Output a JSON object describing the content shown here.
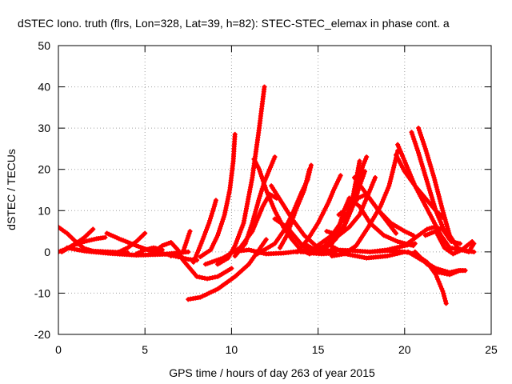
{
  "chart_data": {
    "type": "scatter",
    "title": "dSTEC Iono. truth (flrs, Lon=328, Lat=39, h=82): STEC-STEC_elemax in phase cont. a",
    "xlabel": "GPS time / hours of day 263 of year 2015",
    "ylabel": "dSTEC  / TECUs",
    "xlim": [
      0,
      25
    ],
    "ylim": [
      -20,
      50
    ],
    "x_ticks": [
      0,
      5,
      10,
      15,
      20,
      25
    ],
    "y_ticks": [
      -20,
      -10,
      0,
      10,
      20,
      30,
      40,
      50
    ],
    "grid": true,
    "marker": "plus",
    "color": "#ff0000",
    "series": [
      {
        "points": [
          [
            0,
            6
          ],
          [
            0.5,
            4.5
          ],
          [
            1.0,
            2.5
          ],
          [
            1.5,
            0.8
          ],
          [
            2.0,
            0.2
          ],
          [
            3.0,
            0
          ],
          [
            4.0,
            -0.2
          ]
        ]
      },
      {
        "points": [
          [
            0,
            0
          ],
          [
            0.5,
            0.8
          ],
          [
            1.0,
            2
          ],
          [
            1.5,
            3.5
          ],
          [
            2.0,
            5.5
          ]
        ]
      },
      {
        "points": [
          [
            0.2,
            0
          ],
          [
            0.8,
            1.5
          ],
          [
            1.5,
            2.5
          ],
          [
            2.2,
            3.2
          ],
          [
            2.7,
            3.5
          ]
        ]
      },
      {
        "points": [
          [
            0.5,
            1
          ],
          [
            1.5,
            0.2
          ],
          [
            3.0,
            -0.4
          ],
          [
            4.5,
            -0.8
          ],
          [
            6.0,
            -0.6
          ],
          [
            7.5,
            0
          ]
        ]
      },
      {
        "points": [
          [
            2.8,
            4.5
          ],
          [
            3.5,
            3.2
          ],
          [
            4.5,
            1.5
          ],
          [
            5.5,
            0
          ],
          [
            6.5,
            -0.8
          ],
          [
            7.5,
            -1.8
          ],
          [
            8.0,
            -2
          ]
        ]
      },
      {
        "points": [
          [
            3.5,
            0
          ],
          [
            4.0,
            1
          ],
          [
            4.5,
            2.5
          ],
          [
            5.0,
            4.5
          ]
        ]
      },
      {
        "points": [
          [
            4.5,
            -0.5
          ],
          [
            5.0,
            0.5
          ],
          [
            5.5,
            1
          ],
          [
            6.0,
            0.5
          ]
        ]
      },
      {
        "points": [
          [
            5.5,
            0
          ],
          [
            6.0,
            1.5
          ],
          [
            6.5,
            2.3
          ],
          [
            6.9,
            0.5
          ],
          [
            7.2,
            -2
          ],
          [
            7.6,
            -4
          ],
          [
            8.0,
            -6
          ],
          [
            8.6,
            -6.5
          ],
          [
            9.2,
            -6
          ],
          [
            10.0,
            -4
          ]
        ]
      },
      {
        "points": [
          [
            6.5,
            -1
          ],
          [
            7.2,
            0
          ],
          [
            7.6,
            5
          ]
        ]
      },
      {
        "points": [
          [
            7.8,
            -2.5
          ],
          [
            8.2,
            1.5
          ],
          [
            8.7,
            7
          ],
          [
            9.0,
            11
          ],
          [
            9.1,
            12.5
          ]
        ]
      },
      {
        "points": [
          [
            8.2,
            -1.2
          ],
          [
            8.8,
            0.5
          ],
          [
            9.2,
            4
          ],
          [
            9.6,
            9
          ],
          [
            9.9,
            15
          ],
          [
            10.1,
            22
          ],
          [
            10.2,
            28.5
          ]
        ]
      },
      {
        "points": [
          [
            7.5,
            -11.5
          ],
          [
            8.2,
            -11
          ],
          [
            9.2,
            -9
          ],
          [
            10.2,
            -6
          ],
          [
            11.0,
            -3
          ],
          [
            11.5,
            0
          ],
          [
            12.0,
            3
          ]
        ]
      },
      {
        "points": [
          [
            8.5,
            -3
          ],
          [
            9.5,
            -1.5
          ],
          [
            10.5,
            1
          ],
          [
            11.2,
            5
          ],
          [
            11.8,
            11
          ],
          [
            12.2,
            14
          ],
          [
            12.6,
            13
          ]
        ]
      },
      {
        "points": [
          [
            9.2,
            -3
          ],
          [
            9.8,
            -1.5
          ],
          [
            10.2,
            1.5
          ],
          [
            10.7,
            7
          ],
          [
            11.2,
            18
          ],
          [
            11.6,
            30
          ],
          [
            11.9,
            40
          ]
        ]
      },
      {
        "points": [
          [
            10.2,
            -1
          ],
          [
            10.8,
            2
          ],
          [
            11.2,
            7
          ],
          [
            11.6,
            13
          ],
          [
            11.9,
            17
          ],
          [
            12.2,
            20
          ],
          [
            12.5,
            23
          ]
        ]
      },
      {
        "points": [
          [
            11.3,
            22.5
          ],
          [
            11.6,
            20
          ],
          [
            12.0,
            15
          ],
          [
            12.5,
            10
          ],
          [
            13.0,
            6
          ],
          [
            13.5,
            3
          ],
          [
            14.0,
            0.5
          ],
          [
            14.5,
            -0.5
          ],
          [
            15.0,
            0.3
          ]
        ]
      },
      {
        "points": [
          [
            12.3,
            16
          ],
          [
            12.9,
            12
          ],
          [
            13.5,
            8
          ],
          [
            14.2,
            4
          ],
          [
            15.0,
            1
          ],
          [
            15.8,
            0
          ]
        ]
      },
      {
        "points": [
          [
            12.8,
            1
          ],
          [
            13.2,
            4
          ],
          [
            13.7,
            10
          ],
          [
            14.2,
            15
          ],
          [
            14.5,
            20
          ]
        ]
      },
      {
        "points": [
          [
            10.0,
            0
          ],
          [
            11.0,
            0.5
          ],
          [
            12.0,
            -0.5
          ],
          [
            13.0,
            -0.3
          ],
          [
            14.0,
            0.2
          ]
        ]
      },
      {
        "points": [
          [
            11.5,
            -0.5
          ],
          [
            12.5,
            2
          ],
          [
            13.0,
            5
          ],
          [
            13.5,
            9
          ],
          [
            14.0,
            14
          ],
          [
            14.4,
            17.5
          ],
          [
            14.6,
            21
          ]
        ]
      },
      {
        "points": [
          [
            12.5,
            8
          ],
          [
            13.2,
            6
          ],
          [
            14.0,
            2
          ],
          [
            14.6,
            -0.3
          ],
          [
            15.2,
            -0.5
          ],
          [
            16.0,
            -0.3
          ]
        ]
      },
      {
        "points": [
          [
            13.8,
            0
          ],
          [
            14.4,
            3
          ],
          [
            15.0,
            7
          ],
          [
            15.6,
            12
          ],
          [
            15.9,
            15
          ],
          [
            16.3,
            18.5
          ]
        ]
      },
      {
        "points": [
          [
            14.2,
            2
          ],
          [
            14.9,
            0.3
          ],
          [
            15.6,
            2
          ],
          [
            16.2,
            6
          ],
          [
            16.5,
            10
          ],
          [
            16.8,
            13
          ]
        ]
      },
      {
        "points": [
          [
            15.0,
            0
          ],
          [
            15.8,
            2
          ],
          [
            16.6,
            7
          ],
          [
            17.1,
            12
          ],
          [
            17.4,
            16
          ],
          [
            17.7,
            19.5
          ]
        ]
      },
      {
        "points": [
          [
            15.5,
            2
          ],
          [
            16.0,
            3
          ],
          [
            16.5,
            6
          ],
          [
            17.0,
            13
          ],
          [
            17.4,
            22
          ]
        ]
      },
      {
        "points": [
          [
            16.2,
            9
          ],
          [
            16.5,
            10
          ],
          [
            16.9,
            12
          ],
          [
            17.3,
            17
          ],
          [
            17.6,
            21
          ],
          [
            17.8,
            23
          ]
        ]
      },
      {
        "points": [
          [
            14.8,
            1
          ],
          [
            15.8,
            4
          ],
          [
            16.8,
            10
          ],
          [
            17.3,
            13
          ],
          [
            17.8,
            14
          ],
          [
            18.5,
            10
          ],
          [
            19.5,
            4.5
          ]
        ]
      },
      {
        "points": [
          [
            15.5,
            5
          ],
          [
            16.2,
            4
          ],
          [
            16.8,
            6
          ],
          [
            17.4,
            9
          ],
          [
            17.9,
            14
          ],
          [
            18.3,
            18
          ]
        ]
      },
      {
        "points": [
          [
            15.8,
            -1
          ],
          [
            16.5,
            -0.5
          ],
          [
            17.2,
            1.5
          ],
          [
            17.9,
            6
          ],
          [
            18.6,
            11
          ],
          [
            19.1,
            16
          ],
          [
            19.4,
            21
          ],
          [
            19.6,
            24.5
          ]
        ]
      },
      {
        "points": [
          [
            15.5,
            2
          ],
          [
            16.6,
            -0.5
          ],
          [
            17.8,
            -1.5
          ],
          [
            19.0,
            -1
          ],
          [
            20.0,
            0
          ]
        ]
      },
      {
        "points": [
          [
            14.0,
            0
          ],
          [
            15.0,
            0
          ],
          [
            16.0,
            0.5
          ],
          [
            17.0,
            0.3
          ],
          [
            18.0,
            0
          ],
          [
            19.0,
            0.5
          ],
          [
            20.0,
            1.5
          ],
          [
            20.6,
            2
          ]
        ]
      },
      {
        "points": [
          [
            16.8,
            13
          ],
          [
            17.4,
            11
          ],
          [
            18.0,
            7
          ],
          [
            18.8,
            4
          ],
          [
            19.6,
            2.5
          ],
          [
            20.5,
            1.5
          ]
        ]
      },
      {
        "points": [
          [
            17.1,
            18
          ],
          [
            17.8,
            14
          ],
          [
            18.5,
            10
          ],
          [
            19.2,
            7
          ],
          [
            20.0,
            5
          ],
          [
            20.5,
            4
          ]
        ]
      },
      {
        "points": [
          [
            19.5,
            23.5
          ],
          [
            20.0,
            19.5
          ],
          [
            20.6,
            16
          ],
          [
            21.2,
            13
          ],
          [
            21.8,
            10
          ],
          [
            22.3,
            8
          ]
        ]
      },
      {
        "points": [
          [
            19.6,
            26
          ],
          [
            20.1,
            21
          ],
          [
            20.6,
            16
          ],
          [
            21.1,
            12
          ],
          [
            21.6,
            8
          ],
          [
            22.1,
            4
          ],
          [
            22.6,
            1
          ],
          [
            23.2,
            0.5
          ],
          [
            24.0,
            0
          ]
        ]
      },
      {
        "points": [
          [
            20.4,
            29
          ],
          [
            20.8,
            24
          ],
          [
            21.3,
            17
          ],
          [
            21.8,
            10
          ],
          [
            22.3,
            5
          ],
          [
            22.7,
            2.5
          ],
          [
            23.2,
            2
          ]
        ]
      },
      {
        "points": [
          [
            20.8,
            30
          ],
          [
            21.2,
            25
          ],
          [
            21.7,
            18
          ],
          [
            22.2,
            10
          ],
          [
            22.6,
            4
          ],
          [
            23.1,
            0.8
          ],
          [
            23.7,
            0
          ],
          [
            24.0,
            2
          ]
        ]
      },
      {
        "points": [
          [
            18.0,
            0
          ],
          [
            19.0,
            0.3
          ],
          [
            20.0,
            0
          ],
          [
            20.6,
            -0.5
          ],
          [
            21.3,
            -2.5
          ],
          [
            21.8,
            -5.5
          ],
          [
            22.2,
            -9.5
          ],
          [
            22.4,
            -12.5
          ]
        ]
      },
      {
        "points": [
          [
            20.0,
            1.5
          ],
          [
            20.8,
            4
          ],
          [
            21.3,
            5.5
          ],
          [
            21.7,
            6
          ],
          [
            22.2,
            5.5
          ],
          [
            22.6,
            3
          ]
        ]
      },
      {
        "points": [
          [
            20.2,
            0
          ],
          [
            21.0,
            -2
          ],
          [
            21.8,
            -4
          ],
          [
            22.6,
            -5
          ],
          [
            23.1,
            -4.5
          ],
          [
            23.5,
            -4.5
          ]
        ]
      },
      {
        "points": [
          [
            20.6,
            0
          ],
          [
            21.3,
            -3
          ],
          [
            22.0,
            -5
          ],
          [
            22.6,
            -5.5
          ],
          [
            23.2,
            -4.5
          ],
          [
            23.5,
            -4.5
          ]
        ]
      },
      {
        "points": [
          [
            21.2,
            4
          ],
          [
            21.8,
            5
          ],
          [
            22.3,
            1
          ],
          [
            22.8,
            -0.5
          ],
          [
            23.3,
            0.5
          ],
          [
            23.9,
            2.5
          ]
        ]
      }
    ]
  }
}
